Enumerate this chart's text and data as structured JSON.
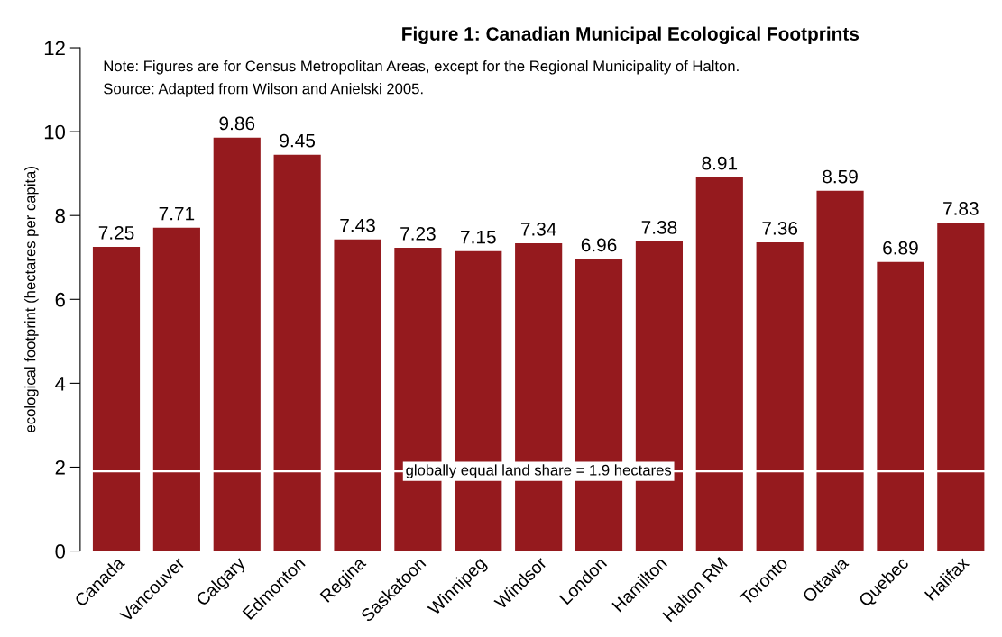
{
  "chart_data": {
    "type": "bar",
    "title": "Figure 1: Canadian Municipal Ecological Footprints",
    "ylabel": "ecological footprint (hectares per capita)",
    "categories": [
      "Canada",
      "Vancouver",
      "Calgary",
      "Edmonton",
      "Regina",
      "Saskatoon",
      "Winnipeg",
      "Windsor",
      "London",
      "Hamilton",
      "Halton RM",
      "Toronto",
      "Ottawa",
      "Quebec",
      "Halifax"
    ],
    "values": [
      7.25,
      7.71,
      9.86,
      9.45,
      7.43,
      7.23,
      7.15,
      7.34,
      6.96,
      7.38,
      8.91,
      7.36,
      8.59,
      6.89,
      7.83
    ],
    "color": "#951a1e",
    "ylim": [
      0,
      12
    ],
    "yticks": [
      0,
      2,
      4,
      6,
      8,
      10,
      12
    ],
    "data_labels": true,
    "grid": false,
    "ref_lines": [
      {
        "axis": "y",
        "value": 1.9,
        "label": "globally equal land share = 1.9 hectares",
        "color": "#ffffff"
      }
    ],
    "annotations": [
      "Note: Figures are for Census Metropolitan Areas, except for the Regional Municipality of Halton.",
      "Source: Adapted from Wilson and Anielski 2005."
    ]
  }
}
